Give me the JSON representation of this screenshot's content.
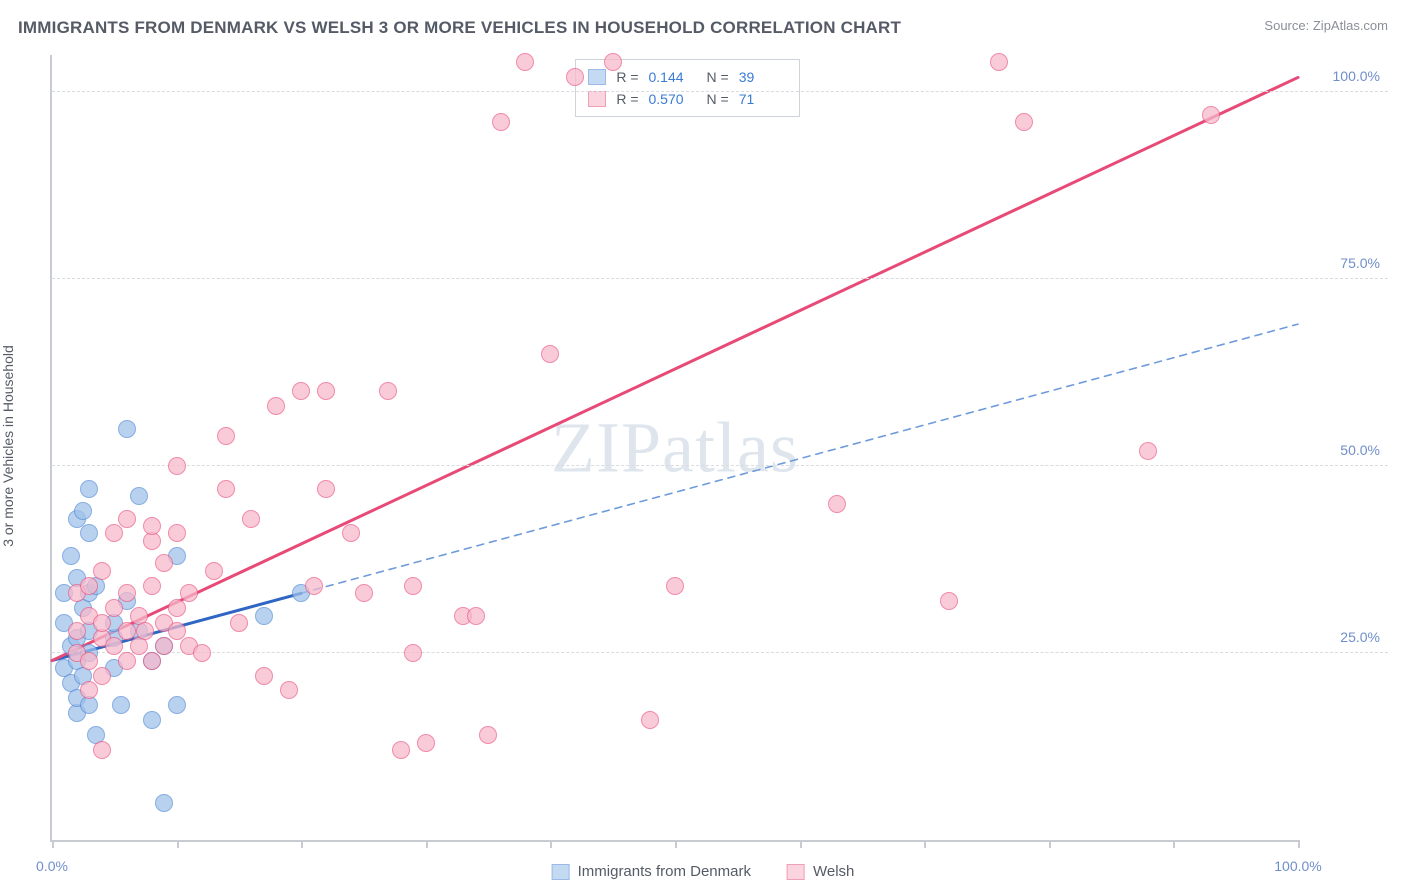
{
  "title": "IMMIGRANTS FROM DENMARK VS WELSH 3 OR MORE VEHICLES IN HOUSEHOLD CORRELATION CHART",
  "source_label": "Source:",
  "source_value": "ZipAtlas.com",
  "watermark": "ZIPatlas",
  "y_axis_label": "3 or more Vehicles in Household",
  "chart": {
    "type": "scatter",
    "xlim": [
      0,
      100
    ],
    "ylim": [
      0,
      105
    ],
    "y_gridlines": [
      25,
      50,
      75,
      100
    ],
    "y_tick_labels": [
      "25.0%",
      "50.0%",
      "75.0%",
      "100.0%"
    ],
    "x_ticks": [
      0,
      10,
      20,
      30,
      40,
      50,
      60,
      70,
      80,
      90,
      100
    ],
    "x_tick_labels_shown": {
      "0": "0.0%",
      "100": "100.0%"
    },
    "background_color": "#ffffff",
    "grid_color": "#d8dbe0",
    "axis_color": "#c8ccd2",
    "marker_radius": 9,
    "marker_stroke_width": 1.5,
    "marker_fill_opacity": 0.28,
    "series": [
      {
        "name": "Immigrants from Denmark",
        "color_stroke": "#5a8fd6",
        "color_fill": "#9ec1ea",
        "R": "0.144",
        "N": "39",
        "trend": {
          "x1": 0,
          "y1": 24,
          "x2": 20,
          "y2": 33,
          "extend_x2": 100,
          "extend_y2": 69,
          "solid_color": "#2f66c4",
          "solid_width": 3,
          "dash_color": "#6f9bdc",
          "dash_pattern": "7 6",
          "dash_width": 1.6
        },
        "points": [
          [
            1,
            23
          ],
          [
            1,
            29
          ],
          [
            1,
            33
          ],
          [
            1.5,
            21
          ],
          [
            1.5,
            26
          ],
          [
            1.5,
            38
          ],
          [
            2,
            17
          ],
          [
            2,
            19
          ],
          [
            2,
            24
          ],
          [
            2,
            27
          ],
          [
            2,
            35
          ],
          [
            2,
            43
          ],
          [
            2.5,
            22
          ],
          [
            2.5,
            31
          ],
          [
            2.5,
            44
          ],
          [
            3,
            18
          ],
          [
            3,
            25
          ],
          [
            3,
            28
          ],
          [
            3,
            33
          ],
          [
            3,
            41
          ],
          [
            3,
            47
          ],
          [
            3.5,
            14
          ],
          [
            3.5,
            34
          ],
          [
            5,
            23
          ],
          [
            5,
            27
          ],
          [
            5,
            29
          ],
          [
            5.5,
            18
          ],
          [
            6,
            32
          ],
          [
            6,
            55
          ],
          [
            7,
            28
          ],
          [
            7,
            46
          ],
          [
            8,
            16
          ],
          [
            8,
            24
          ],
          [
            9,
            5
          ],
          [
            9,
            26
          ],
          [
            10,
            18
          ],
          [
            10,
            38
          ],
          [
            17,
            30
          ],
          [
            20,
            33
          ]
        ]
      },
      {
        "name": "Welsh",
        "color_stroke": "#eb5f88",
        "color_fill": "#f7b9cb",
        "R": "0.570",
        "N": "71",
        "trend": {
          "x1": 0,
          "y1": 24,
          "x2": 100,
          "y2": 102,
          "solid_color": "#e84a78",
          "solid_width": 3
        },
        "points": [
          [
            2,
            25
          ],
          [
            2,
            28
          ],
          [
            2,
            33
          ],
          [
            3,
            20
          ],
          [
            3,
            24
          ],
          [
            3,
            30
          ],
          [
            3,
            34
          ],
          [
            4,
            12
          ],
          [
            4,
            22
          ],
          [
            4,
            27
          ],
          [
            4,
            29
          ],
          [
            4,
            36
          ],
          [
            5,
            26
          ],
          [
            5,
            31
          ],
          [
            5,
            41
          ],
          [
            6,
            24
          ],
          [
            6,
            28
          ],
          [
            6,
            33
          ],
          [
            6,
            43
          ],
          [
            7,
            26
          ],
          [
            7,
            30
          ],
          [
            7.5,
            28
          ],
          [
            8,
            24
          ],
          [
            8,
            34
          ],
          [
            8,
            40
          ],
          [
            8,
            42
          ],
          [
            9,
            26
          ],
          [
            9,
            29
          ],
          [
            9,
            37
          ],
          [
            10,
            28
          ],
          [
            10,
            31
          ],
          [
            10,
            41
          ],
          [
            10,
            50
          ],
          [
            11,
            26
          ],
          [
            11,
            33
          ],
          [
            12,
            25
          ],
          [
            13,
            36
          ],
          [
            14,
            47
          ],
          [
            14,
            54
          ],
          [
            15,
            29
          ],
          [
            16,
            43
          ],
          [
            17,
            22
          ],
          [
            18,
            58
          ],
          [
            19,
            20
          ],
          [
            20,
            60
          ],
          [
            21,
            34
          ],
          [
            22,
            47
          ],
          [
            22,
            60
          ],
          [
            24,
            41
          ],
          [
            25,
            33
          ],
          [
            27,
            60
          ],
          [
            28,
            12
          ],
          [
            29,
            25
          ],
          [
            29,
            34
          ],
          [
            30,
            13
          ],
          [
            33,
            30
          ],
          [
            34,
            30
          ],
          [
            35,
            14
          ],
          [
            36,
            96
          ],
          [
            38,
            104
          ],
          [
            40,
            65
          ],
          [
            42,
            102
          ],
          [
            45,
            104
          ],
          [
            48,
            16
          ],
          [
            50,
            34
          ],
          [
            63,
            45
          ],
          [
            72,
            32
          ],
          [
            76,
            104
          ],
          [
            78,
            96
          ],
          [
            88,
            52
          ],
          [
            93,
            97
          ]
        ]
      }
    ]
  },
  "rn_legend": {
    "r_label": "R  =",
    "n_label": "N  ="
  },
  "bottom_legend": {
    "items": [
      "Immigrants from Denmark",
      "Welsh"
    ]
  }
}
